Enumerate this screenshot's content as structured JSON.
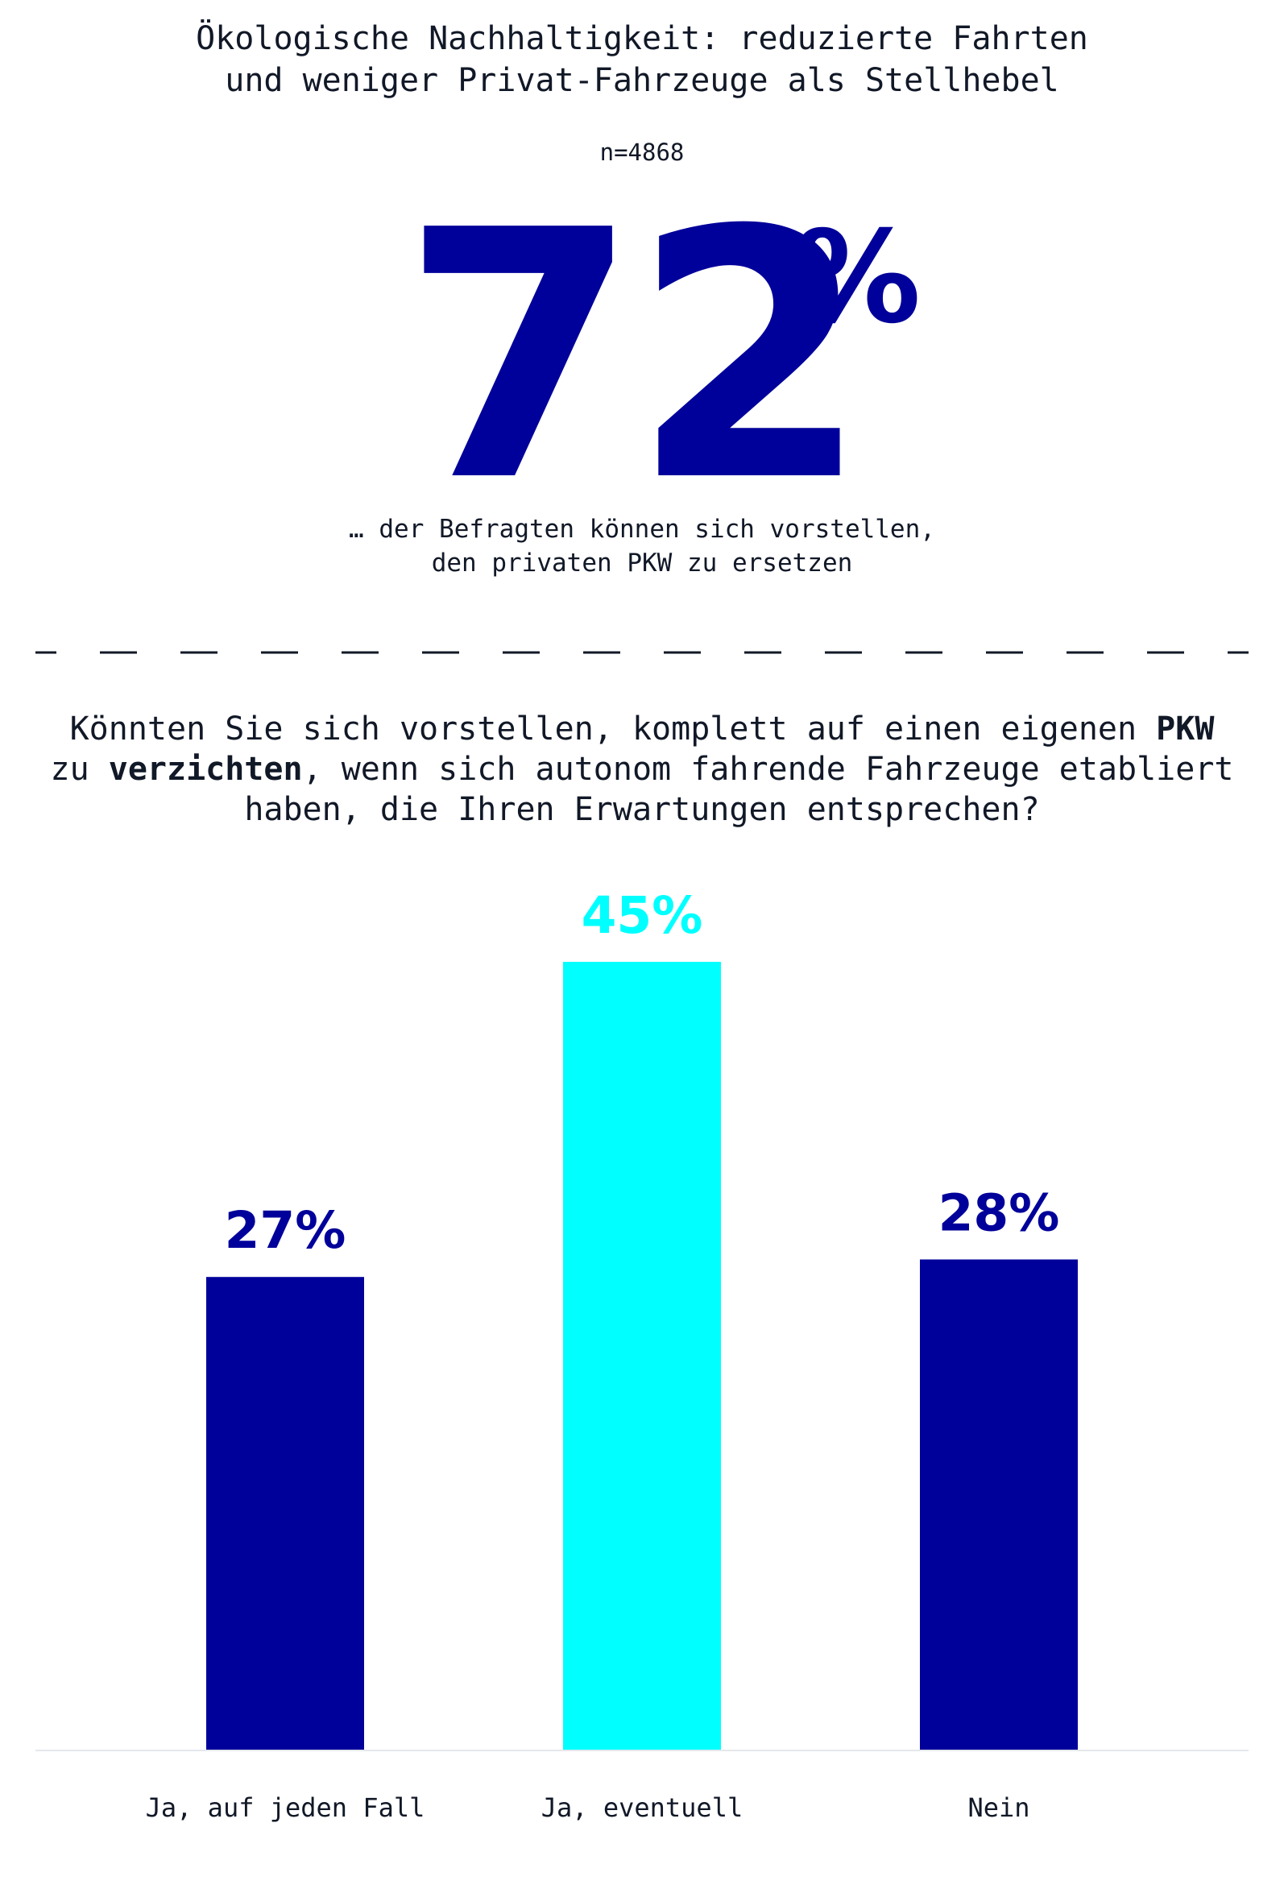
{
  "title": {
    "line1": "Ökologische Nachhaltigkeit: reduzierte Fahrten",
    "line2": "und weniger Privat-Fahrzeuge als Stellhebel"
  },
  "sample": "n=4868",
  "headline": {
    "number": "72",
    "percent_sign": "%",
    "caption_line1": "… der Befragten können sich vorstellen,",
    "caption_line2": "den privaten PKW zu ersetzen"
  },
  "question": {
    "line1_a": "Könnten Sie sich vorstellen, komplett auf einen eigenen ",
    "line1_bold": "PKW",
    "line2_a": "zu ",
    "line2_bold": "verzichten",
    "line2_b": ", wenn sich autonom fahrende Fahrzeuge etabliert",
    "line3": "haben, die Ihren Erwartungen entsprechen?"
  },
  "colors": {
    "primary": "#00009a",
    "highlight": "#00ffff",
    "text": "#111827",
    "baseline": "#e5e7eb"
  },
  "chart_data": {
    "type": "bar",
    "categories": [
      "Ja, auf jeden Fall",
      "Ja, eventuell",
      "Nein"
    ],
    "values": [
      27,
      45,
      28
    ],
    "value_labels": [
      "27%",
      "45%",
      "28%"
    ],
    "bar_colors": [
      "#00009a",
      "#00ffff",
      "#00009a"
    ],
    "title": "",
    "xlabel": "",
    "ylabel": "",
    "ylim": [
      0,
      45
    ],
    "grid": false,
    "legend": "none"
  }
}
